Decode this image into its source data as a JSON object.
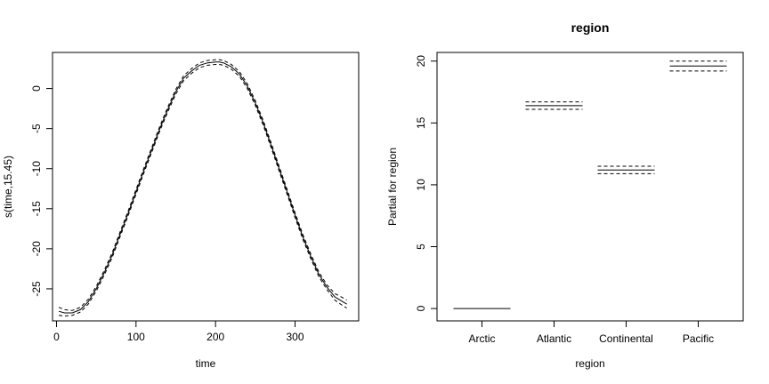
{
  "chart_data": [
    {
      "type": "line",
      "title": "",
      "xlabel": "time",
      "ylabel": "s(time,15.45)",
      "xlim": [
        -5,
        380
      ],
      "ylim": [
        -29,
        4.5
      ],
      "xticks": [
        0,
        100,
        200,
        300
      ],
      "yticks": [
        0,
        -5,
        -10,
        -15,
        -20,
        -25
      ],
      "grid": false,
      "series": [
        {
          "style": "solid",
          "x": [
            3,
            10,
            20,
            30,
            40,
            50,
            60,
            70,
            80,
            90,
            100,
            110,
            120,
            130,
            140,
            150,
            160,
            170,
            180,
            190,
            200,
            205,
            210,
            220,
            230,
            240,
            250,
            260,
            270,
            280,
            290,
            300,
            310,
            320,
            330,
            340,
            350,
            360,
            365
          ],
          "y": [
            -27.8,
            -28.0,
            -28.0,
            -27.6,
            -26.6,
            -25.0,
            -23.0,
            -20.8,
            -18.2,
            -15.6,
            -12.9,
            -10.2,
            -7.6,
            -5.0,
            -2.6,
            -0.4,
            1.3,
            2.2,
            2.9,
            3.2,
            3.3,
            3.3,
            3.2,
            2.7,
            1.8,
            0.3,
            -1.8,
            -4.3,
            -7.1,
            -10.0,
            -12.9,
            -15.8,
            -18.6,
            -21.0,
            -23.2,
            -24.8,
            -26.0,
            -26.6,
            -26.9
          ]
        },
        {
          "style": "dashed",
          "x": [
            3,
            10,
            20,
            30,
            40,
            50,
            60,
            70,
            80,
            90,
            100,
            110,
            120,
            130,
            140,
            150,
            160,
            170,
            180,
            190,
            200,
            205,
            210,
            220,
            230,
            240,
            250,
            260,
            270,
            280,
            290,
            300,
            310,
            320,
            330,
            340,
            350,
            360,
            365
          ],
          "y": [
            -27.3,
            -27.6,
            -27.7,
            -27.3,
            -26.3,
            -24.7,
            -22.7,
            -20.5,
            -17.9,
            -15.3,
            -12.6,
            -9.9,
            -7.3,
            -4.7,
            -2.3,
            -0.1,
            1.6,
            2.5,
            3.2,
            3.5,
            3.6,
            3.6,
            3.5,
            3.0,
            2.1,
            0.6,
            -1.5,
            -4.0,
            -6.8,
            -9.7,
            -12.6,
            -15.5,
            -18.3,
            -20.7,
            -22.9,
            -24.5,
            -25.6,
            -26.1,
            -26.4
          ]
        },
        {
          "style": "dashed",
          "x": [
            3,
            10,
            20,
            30,
            40,
            50,
            60,
            70,
            80,
            90,
            100,
            110,
            120,
            130,
            140,
            150,
            160,
            170,
            180,
            190,
            200,
            205,
            210,
            220,
            230,
            240,
            250,
            260,
            270,
            280,
            290,
            300,
            310,
            320,
            330,
            340,
            350,
            360,
            365
          ],
          "y": [
            -28.3,
            -28.4,
            -28.3,
            -27.9,
            -26.9,
            -25.3,
            -23.3,
            -21.1,
            -18.5,
            -15.9,
            -13.2,
            -10.5,
            -7.9,
            -5.3,
            -2.9,
            -0.7,
            1.0,
            1.9,
            2.6,
            2.9,
            3.0,
            3.0,
            2.9,
            2.4,
            1.5,
            0.0,
            -2.1,
            -4.6,
            -7.4,
            -10.3,
            -13.2,
            -16.1,
            -18.9,
            -21.3,
            -23.5,
            -25.1,
            -26.4,
            -27.1,
            -27.4
          ]
        }
      ]
    },
    {
      "type": "termplot-factor",
      "title": "region",
      "xlabel": "region",
      "ylabel": "Partial for region",
      "ylim": [
        -1,
        20.7
      ],
      "yticks": [
        0,
        5,
        10,
        15,
        20
      ],
      "grid": false,
      "categories": [
        "Arctic",
        "Atlantic",
        "Continental",
        "Pacific"
      ],
      "values": [
        0,
        16.4,
        11.2,
        19.6
      ],
      "upper": [
        0,
        16.7,
        11.5,
        20.0
      ],
      "lower": [
        0,
        16.1,
        10.9,
        19.2
      ]
    }
  ]
}
